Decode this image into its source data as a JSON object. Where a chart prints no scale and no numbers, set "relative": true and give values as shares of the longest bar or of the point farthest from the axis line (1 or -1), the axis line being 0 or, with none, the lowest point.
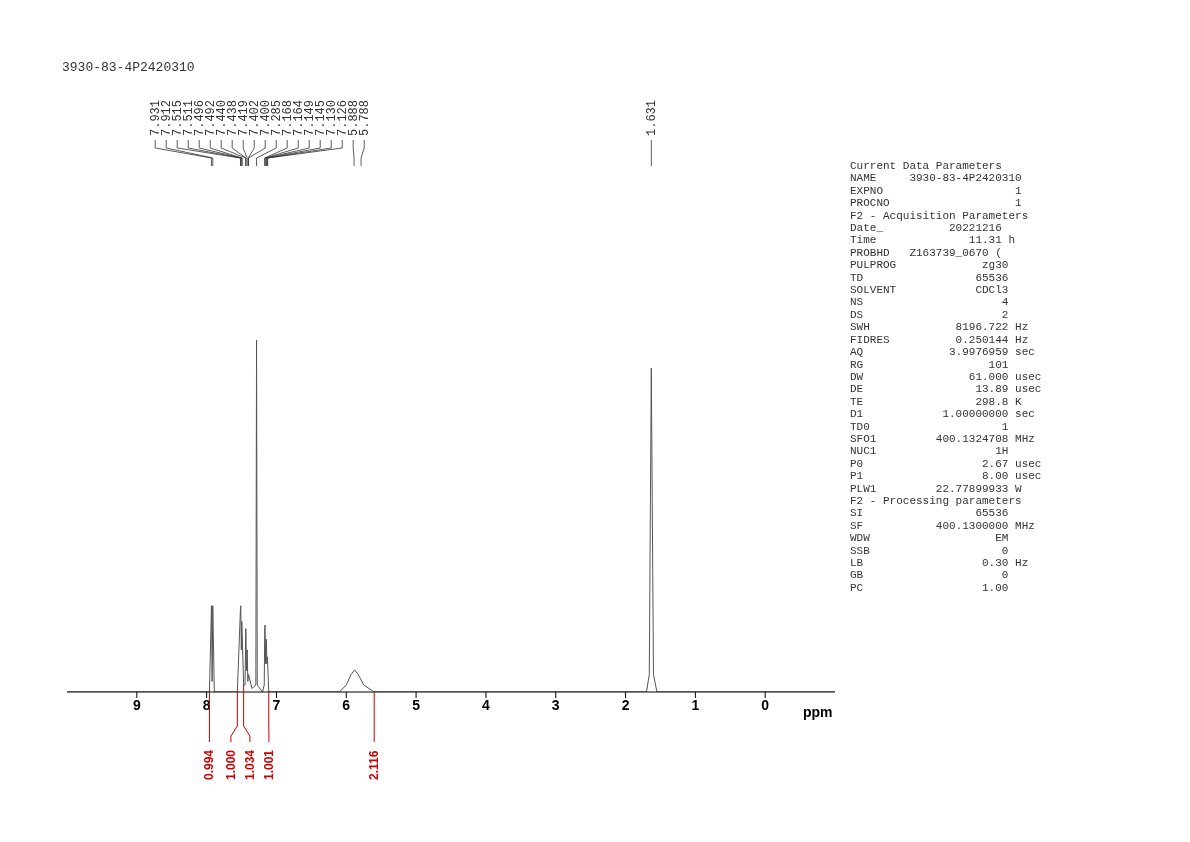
{
  "chart_data": [
    {
      "type": "line",
      "title": "3930-83-4P2420310",
      "xlabel": "ppm",
      "relative": true,
      "xlim": [
        10,
        -1
      ],
      "xticks": [
        9,
        8,
        7,
        6,
        5,
        4,
        3,
        2,
        1,
        0
      ],
      "series": [
        {
          "color": "#555555",
          "x": [
            10,
            8.2,
            7.96,
            7.931,
            7.921,
            7.912,
            7.89,
            7.56,
            7.515,
            7.511,
            7.503,
            7.496,
            7.47,
            7.45,
            7.44,
            7.438,
            7.429,
            7.419,
            7.41,
            7.402,
            7.4,
            7.35,
            7.295,
            7.285,
            7.275,
            7.2,
            7.175,
            7.168,
            7.164,
            7.155,
            7.149,
            7.145,
            7.138,
            7.13,
            7.126,
            7.11,
            6.1,
            6.0,
            5.93,
            5.88,
            5.83,
            5.75,
            5.6,
            1.7,
            1.66,
            1.631,
            1.6,
            1.55,
            -1
          ],
          "values": [
            0,
            0,
            0,
            0.245,
            0.03,
            0.245,
            0,
            0,
            0.24,
            0.245,
            0.12,
            0.2,
            0.02,
            0.02,
            0.18,
            0.18,
            0.06,
            0.12,
            0.03,
            0.05,
            0.05,
            0.01,
            0.02,
            1,
            0.02,
            0,
            0.02,
            0.18,
            0.19,
            0.08,
            0.14,
            0.15,
            0.08,
            0.1,
            0.08,
            0,
            0,
            0.02,
            0.05,
            0.063,
            0.05,
            0.02,
            0,
            0,
            0.05,
            0.92,
            0.05,
            0,
            0
          ]
        }
      ],
      "annotations": [
        {
          "text": "7.931",
          "x": 7.931
        },
        {
          "text": "7.912",
          "x": 7.912
        },
        {
          "text": "7.515",
          "x": 7.515
        },
        {
          "text": "7.511",
          "x": 7.511
        },
        {
          "text": "7.496",
          "x": 7.496
        },
        {
          "text": "7.492",
          "x": 7.492
        },
        {
          "text": "7.440",
          "x": 7.44
        },
        {
          "text": "7.438",
          "x": 7.438
        },
        {
          "text": "7.419",
          "x": 7.419
        },
        {
          "text": "7.402",
          "x": 7.402
        },
        {
          "text": "7.400",
          "x": 7.4
        },
        {
          "text": "7.285",
          "x": 7.285
        },
        {
          "text": "7.168",
          "x": 7.168
        },
        {
          "text": "7.164",
          "x": 7.164
        },
        {
          "text": "7.149",
          "x": 7.149
        },
        {
          "text": "7.145",
          "x": 7.145
        },
        {
          "text": "7.130",
          "x": 7.13
        },
        {
          "text": "7.126",
          "x": 7.126
        },
        {
          "text": "5.888",
          "x": 5.888
        },
        {
          "text": "5.788",
          "x": 5.788
        },
        {
          "text": "1.631",
          "x": 1.631
        },
        {
          "text": "0.994",
          "x": 7.96,
          "y": 0
        },
        {
          "text": "1.000",
          "x": 7.56,
          "y": 0
        },
        {
          "text": "1.034",
          "x": 7.47,
          "y": 0.02
        },
        {
          "text": "1.001",
          "x": 7.11,
          "y": 0
        },
        {
          "text": "2.116",
          "x": 5.6,
          "y": 0
        }
      ]
    },
    {
      "type": "other",
      "annotations": [
        "Current Data Parameters",
        "NAME     3930-83-4P2420310",
        "EXPNO                    1",
        "PROCNO                   1",
        "F2 - Acquisition Parameters",
        "Date_          20221216",
        "Time              11.31 h",
        "PROBHD   Z163739_0670 (",
        "PULPROG             zg30",
        "TD                 65536",
        "SOLVENT            CDCl3",
        "NS                     4",
        "DS                     2",
        "SWH             8196.722 Hz",
        "FIDRES          0.250144 Hz",
        "AQ             3.9976959 sec",
        "RG                   101",
        "DW                61.000 usec",
        "DE                 13.89 usec",
        "TE                 298.8 K",
        "D1            1.00000000 sec",
        "TD0                    1",
        "SFO1         400.1324708 MHz",
        "NUC1                  1H",
        "P0                  2.67 usec",
        "P1                  8.00 usec",
        "PLW1         22.77899933 W",
        "F2 - Processing parameters",
        "SI                 65536",
        "SF           400.1300000 MHz",
        "WDW                   EM",
        "SSB                    0",
        "LB                  0.30 Hz",
        "GB                     0",
        "PC                  1.00"
      ]
    }
  ]
}
